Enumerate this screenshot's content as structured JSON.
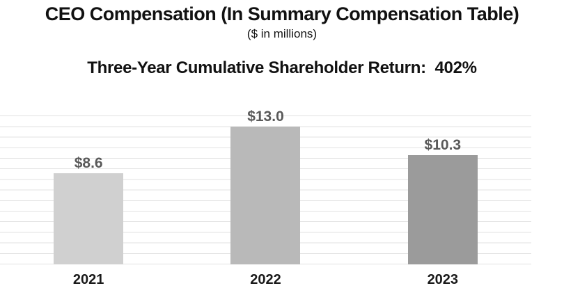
{
  "header": {
    "title": "CEO Compensation (In Summary Compensation Table)",
    "subtitle": "($ in millions)",
    "return_heading": "Three-Year Cumulative Shareholder Return:  402%"
  },
  "chart_data": {
    "type": "bar",
    "title": "CEO Compensation (In Summary Compensation Table)",
    "subtitle": "($ in millions)",
    "annotation": "Three-Year Cumulative Shareholder Return: 402%",
    "categories": [
      "2021",
      "2022",
      "2023"
    ],
    "values": [
      8.6,
      13.0,
      10.3
    ],
    "value_labels": [
      "$8.6",
      "$13.0",
      "$10.3"
    ],
    "unit": "$ millions",
    "xlabel": "",
    "ylabel": "",
    "ylim": [
      0,
      15
    ],
    "gridline_step": 1,
    "grid": true,
    "legend": false,
    "colors": {
      "bars": [
        "#d0d0d0",
        "#b9b9b9",
        "#9b9b9b"
      ],
      "gridline": "#e2e2e2",
      "value_label": "#595959",
      "axis_label": "#1a1a1a",
      "background": "#ffffff"
    }
  }
}
